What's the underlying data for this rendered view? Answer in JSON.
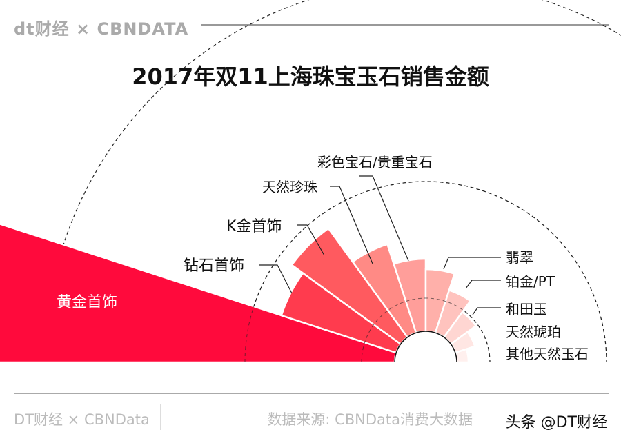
{
  "header": {
    "logo": "dt财经 × CBNDATA"
  },
  "footer": {
    "left": "DT财经 × CBNData",
    "source": "数据来源: CBNData消费大数据",
    "watermark": "头条 @DT财经"
  },
  "chart_data": {
    "type": "polar-bar",
    "title": "2017年双11上海珠宝玉石销售金额",
    "categories": [
      "黄金首饰",
      "钻石首饰",
      "K金首饰",
      "天然珍珠",
      "彩色宝石/贵重宝石",
      "翡翠",
      "铂金/PT",
      "和田玉",
      "天然琥珀",
      "其他天然玉石"
    ],
    "values": [
      700,
      220,
      240,
      180,
      150,
      135,
      110,
      90,
      75,
      62
    ],
    "value_note": "relative magnitude (no values printed)",
    "colors": [
      "#ff0a3c",
      "#ff3b4e",
      "#ff5a5f",
      "#ff8a85",
      "#ff9e9a",
      "#ffb0aa",
      "#ffc3be",
      "#ffd6d2",
      "#ffe6e3",
      "#fff0ee"
    ],
    "grid": "dashed concentric arcs",
    "legend": "none"
  }
}
